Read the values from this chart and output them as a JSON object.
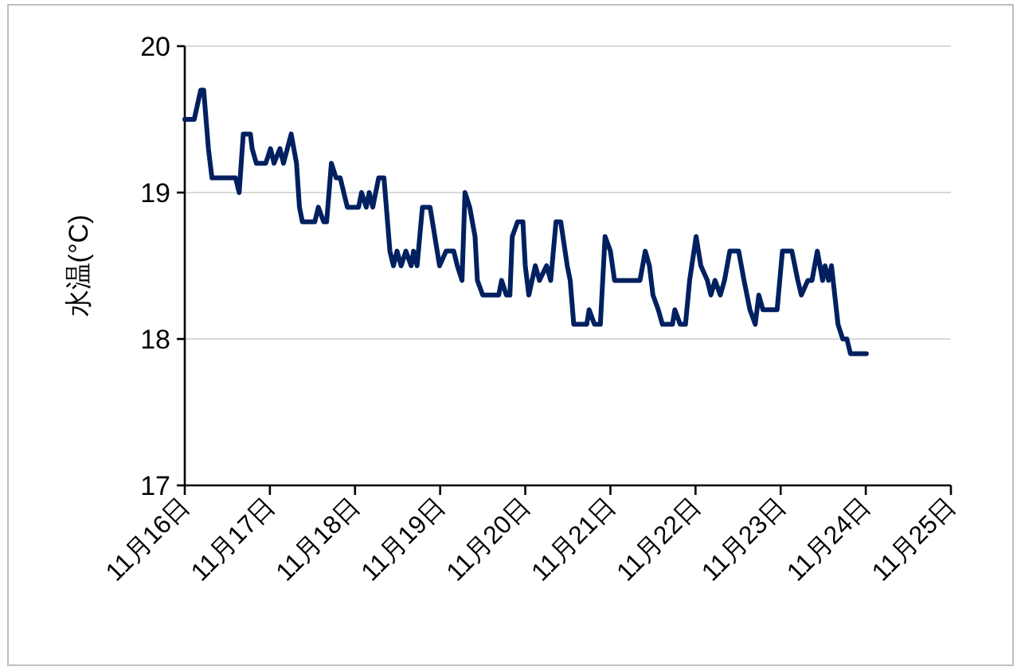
{
  "chart_data": {
    "type": "line",
    "ylabel": "水温(°C)",
    "color": "#002060",
    "grid": "y",
    "legend": false,
    "marker": "none",
    "line_style": "solid",
    "xlim": [
      "--11-16",
      "--11-25"
    ],
    "ylim": [
      17,
      20
    ],
    "yticks": [
      17,
      18,
      19,
      20
    ],
    "xticks": [
      {
        "value": "--11-16",
        "label": "11月16日"
      },
      {
        "value": "--11-17",
        "label": "11月17日"
      },
      {
        "value": "--11-18",
        "label": "11月18日"
      },
      {
        "value": "--11-19",
        "label": "11月19日"
      },
      {
        "value": "--11-20",
        "label": "11月20日"
      },
      {
        "value": "--11-21",
        "label": "11月21日"
      },
      {
        "value": "--11-22",
        "label": "11月22日"
      },
      {
        "value": "--11-23",
        "label": "11月23日"
      },
      {
        "value": "--11-24",
        "label": "11月24日"
      },
      {
        "value": "--11-25",
        "label": "11月25日"
      }
    ],
    "x": [
      "--11-16T00:00",
      "--11-16T02:40",
      "--11-16T04:30",
      "--11-16T05:20",
      "--11-16T06:40",
      "--11-16T07:40",
      "--11-16T14:20",
      "--11-16T15:20",
      "--11-16T16:30",
      "--11-16T18:30",
      "--11-16T19:00",
      "--11-16T20:10",
      "--11-16T22:50",
      "--11-17T00:10",
      "--11-17T01:10",
      "--11-17T02:50",
      "--11-17T03:50",
      "--11-17T06:00",
      "--11-17T07:30",
      "--11-17T08:20",
      "--11-17T09:10",
      "--11-17T12:40",
      "--11-17T13:40",
      "--11-17T15:10",
      "--11-17T16:00",
      "--11-17T17:20",
      "--11-17T18:40",
      "--11-17T19:50",
      "--11-17T21:50",
      "--11-18T01:00",
      "--11-18T01:50",
      "--11-18T03:10",
      "--11-18T04:00",
      "--11-18T05:00",
      "--11-18T06:40",
      "--11-18T08:10",
      "--11-18T09:10",
      "--11-18T09:50",
      "--11-18T10:50",
      "--11-18T11:50",
      "--11-18T13:00",
      "--11-18T14:20",
      "--11-18T15:50",
      "--11-18T16:30",
      "--11-18T17:30",
      "--11-18T19:00",
      "--11-18T21:10",
      "--11-18T22:30",
      "--11-18T23:50",
      "--11-19T01:40",
      "--11-19T03:50",
      "--11-19T04:50",
      "--11-19T06:10",
      "--11-19T07:00",
      "--11-19T08:20",
      "--11-19T09:50",
      "--11-19T10:30",
      "--11-19T12:00",
      "--11-19T16:30",
      "--11-19T17:20",
      "--11-19T18:40",
      "--11-19T19:40",
      "--11-19T20:20",
      "--11-19T21:50",
      "--11-19T23:20",
      "--11-20T00:00",
      "--11-20T01:00",
      "--11-20T02:50",
      "--11-20T04:00",
      "--11-20T06:00",
      "--11-20T07:10",
      "--11-20T08:40",
      "--11-20T10:00",
      "--11-20T11:50",
      "--11-20T12:40",
      "--11-20T13:40",
      "--11-20T17:20",
      "--11-20T18:00",
      "--11-20T19:30",
      "--11-20T21:10",
      "--11-20T22:30",
      "--11-21T00:00",
      "--11-21T01:10",
      "--11-21T08:20",
      "--11-21T09:50",
      "--11-21T11:00",
      "--11-21T12:00",
      "--11-21T13:30",
      "--11-21T14:40",
      "--11-21T17:30",
      "--11-21T18:10",
      "--11-21T19:40",
      "--11-21T21:10",
      "--11-21T22:20",
      "--11-22T00:10",
      "--11-22T01:30",
      "--11-22T03:20",
      "--11-22T04:20",
      "--11-22T05:30",
      "--11-22T07:00",
      "--11-22T08:10",
      "--11-22T09:40",
      "--11-22T12:10",
      "--11-22T13:40",
      "--11-22T15:20",
      "--11-22T16:50",
      "--11-22T17:50",
      "--11-22T19:00",
      "--11-22T23:00",
      "--11-23T00:30",
      "--11-23T03:10",
      "--11-23T04:50",
      "--11-23T05:50",
      "--11-23T07:40",
      "--11-23T08:50",
      "--11-23T10:20",
      "--11-23T11:50",
      "--11-23T12:30",
      "--11-23T13:30",
      "--11-23T14:20",
      "--11-23T16:10",
      "--11-23T17:30",
      "--11-23T18:40",
      "--11-23T19:40",
      "--11-24T00:10"
    ],
    "values": [
      19.5,
      19.5,
      19.7,
      19.7,
      19.3,
      19.1,
      19.1,
      19.0,
      19.4,
      19.4,
      19.3,
      19.2,
      19.2,
      19.3,
      19.2,
      19.3,
      19.2,
      19.4,
      19.2,
      18.9,
      18.8,
      18.8,
      18.9,
      18.8,
      18.8,
      19.2,
      19.1,
      19.1,
      18.9,
      18.9,
      19.0,
      18.9,
      19.0,
      18.9,
      19.1,
      19.1,
      18.8,
      18.6,
      18.5,
      18.6,
      18.5,
      18.6,
      18.5,
      18.6,
      18.5,
      18.9,
      18.9,
      18.7,
      18.5,
      18.6,
      18.6,
      18.5,
      18.4,
      19.0,
      18.9,
      18.7,
      18.4,
      18.3,
      18.3,
      18.4,
      18.3,
      18.3,
      18.7,
      18.8,
      18.8,
      18.5,
      18.3,
      18.5,
      18.4,
      18.5,
      18.4,
      18.8,
      18.8,
      18.5,
      18.4,
      18.1,
      18.1,
      18.2,
      18.1,
      18.1,
      18.7,
      18.6,
      18.4,
      18.4,
      18.6,
      18.5,
      18.3,
      18.2,
      18.1,
      18.1,
      18.2,
      18.1,
      18.1,
      18.4,
      18.7,
      18.5,
      18.4,
      18.3,
      18.4,
      18.3,
      18.4,
      18.6,
      18.6,
      18.4,
      18.2,
      18.1,
      18.3,
      18.2,
      18.2,
      18.6,
      18.6,
      18.4,
      18.3,
      18.4,
      18.4,
      18.6,
      18.4,
      18.5,
      18.4,
      18.5,
      18.1,
      18.0,
      18.0,
      17.9,
      17.9
    ]
  }
}
